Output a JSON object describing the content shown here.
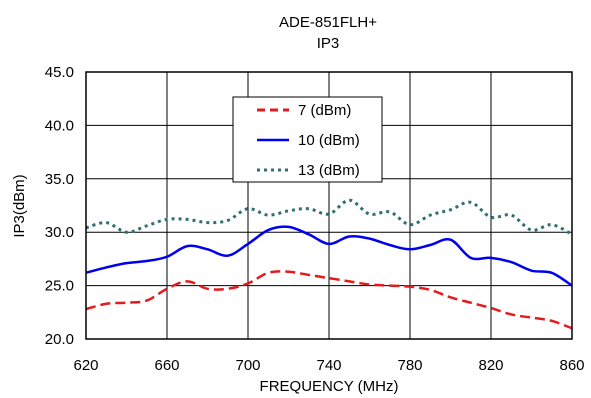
{
  "chart_data": {
    "type": "line",
    "title": "ADE-851FLH+",
    "subtitle": "IP3",
    "xlabel": "FREQUENCY (MHz)",
    "ylabel": "IP3(dBm)",
    "xlim": [
      620,
      860
    ],
    "ylim": [
      20.0,
      45.0
    ],
    "x_ticks": [
      "620",
      "660",
      "700",
      "740",
      "780",
      "820",
      "860"
    ],
    "y_ticks": [
      "20.0",
      "25.0",
      "30.0",
      "35.0",
      "40.0",
      "45.0"
    ],
    "grid": true,
    "legend_position": "top-center",
    "x": [
      620,
      630,
      640,
      650,
      660,
      670,
      680,
      690,
      700,
      710,
      720,
      730,
      740,
      750,
      760,
      770,
      780,
      790,
      800,
      810,
      820,
      830,
      840,
      850,
      860
    ],
    "series": [
      {
        "name": "7 (dBm)",
        "color": "#e41a1c",
        "dash": "dashed",
        "values": [
          22.8,
          23.3,
          23.4,
          23.6,
          24.7,
          25.4,
          24.7,
          24.7,
          25.2,
          26.2,
          26.3,
          26.0,
          25.7,
          25.4,
          25.1,
          25.0,
          24.9,
          24.6,
          23.9,
          23.4,
          22.9,
          22.3,
          22.0,
          21.7,
          21.0
        ]
      },
      {
        "name": "10 (dBm)",
        "color": "#0000ee",
        "dash": "solid",
        "values": [
          26.2,
          26.7,
          27.1,
          27.3,
          27.7,
          28.7,
          28.4,
          27.8,
          28.9,
          30.2,
          30.5,
          29.8,
          28.9,
          29.6,
          29.4,
          28.8,
          28.4,
          28.8,
          29.3,
          27.6,
          27.6,
          27.2,
          26.4,
          26.2,
          25.0
        ]
      },
      {
        "name": "13 (dBm)",
        "color": "#2f6f6f",
        "dash": "dotted",
        "values": [
          30.4,
          30.9,
          30.0,
          30.6,
          31.2,
          31.2,
          30.9,
          31.1,
          32.2,
          31.6,
          32.0,
          32.2,
          31.7,
          33.0,
          31.7,
          31.9,
          30.7,
          31.6,
          32.1,
          32.8,
          31.4,
          31.6,
          30.2,
          30.7,
          29.8
        ]
      }
    ]
  }
}
